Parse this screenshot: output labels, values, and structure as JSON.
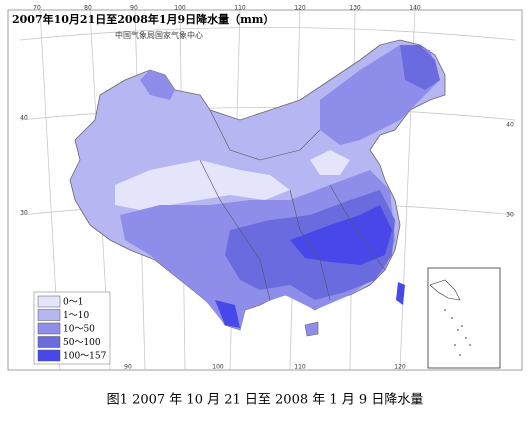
{
  "title": "2007年10月21日至2008年1月9日降水量（mm）",
  "subtitle": "中国气象局国家气象中心",
  "legend": [
    {
      "label": "0～1",
      "color": "#e4e4fb"
    },
    {
      "label": "1～10",
      "color": "#b6b6f2"
    },
    {
      "label": "10～50",
      "color": "#8e8eea"
    },
    {
      "label": "50～100",
      "color": "#6b6be0"
    },
    {
      "label": "100～157",
      "color": "#4848ea"
    }
  ],
  "graticule": {
    "top": [
      70,
      80,
      90,
      100,
      110,
      120,
      130,
      140
    ],
    "left": [
      40,
      30
    ],
    "right": [
      40,
      30
    ],
    "bottom": [
      90,
      100,
      110,
      120
    ]
  },
  "caption": "图1  2007 年 10 月 21 日至 2008 年 1 月 9 日降水量"
}
